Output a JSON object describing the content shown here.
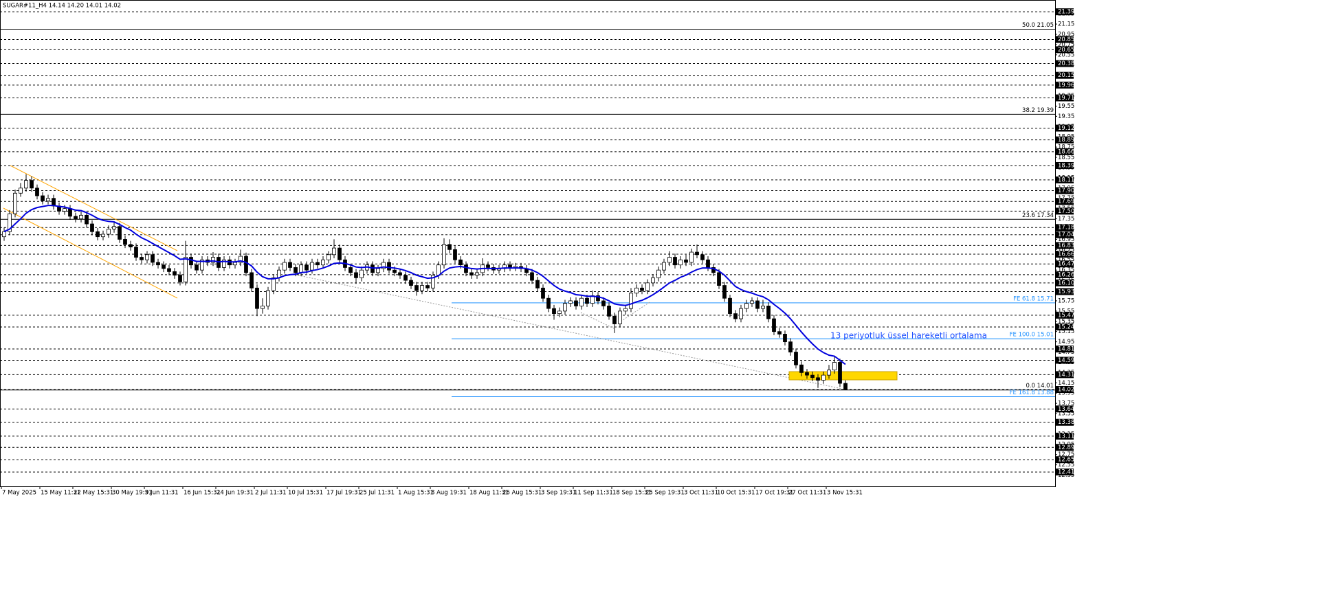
{
  "chart_data": {
    "type": "candlestick",
    "title": "SUGAR#11_H4  14.14 14.20 14.01 14.02",
    "annotation": "13 periyotluk üssel hareketli ortalama",
    "up_color": "#ffffff",
    "down_color": "#000000",
    "categories": [
      "7 May 2025",
      null,
      null,
      null,
      null,
      null,
      null,
      "15 May 11:31",
      null,
      null,
      null,
      null,
      null,
      "22 May 15:31",
      null,
      null,
      null,
      null,
      null,
      null,
      "30 May 19:31",
      null,
      null,
      null,
      null,
      null,
      "9 Jun 11:31",
      null,
      null,
      null,
      null,
      null,
      null,
      "16 Jun 15:31",
      null,
      null,
      null,
      null,
      null,
      "24 Jun 19:31",
      null,
      null,
      null,
      null,
      null,
      null,
      "2 Jul 11:31",
      null,
      null,
      null,
      null,
      null,
      "10 Jul 15:31",
      null,
      null,
      null,
      null,
      null,
      null,
      "17 Jul 19:31",
      null,
      null,
      null,
      null,
      null,
      "25 Jul 11:31",
      null,
      null,
      null,
      null,
      null,
      null,
      "1 Aug 15:31",
      null,
      null,
      null,
      null,
      null,
      "8 Aug 19:31",
      null,
      null,
      null,
      null,
      null,
      null,
      "18 Aug 11:31",
      null,
      null,
      null,
      null,
      null,
      "26 Aug 15:31",
      null,
      null,
      null,
      null,
      null,
      null,
      "3 Sep 19:31",
      null,
      null,
      null,
      null,
      null,
      "11 Sep 11:31",
      null,
      null,
      null,
      null,
      null,
      null,
      "18 Sep 15:31",
      null,
      null,
      null,
      null,
      null,
      "25 Sep 19:31",
      null,
      null,
      null,
      null,
      null,
      null,
      "3 Oct 11:31",
      null,
      null,
      null,
      null,
      null,
      "10 Oct 15:31",
      null,
      null,
      null,
      null,
      null,
      null,
      "17 Oct 19:31",
      null,
      null,
      null,
      null,
      null,
      "27 Oct 11:31",
      null,
      null,
      null,
      null,
      null,
      null,
      "3 Nov 15:31",
      null,
      null,
      null
    ],
    "open": [
      17.0,
      17.1,
      17.45,
      17.85,
      17.95,
      18.1,
      17.95,
      17.8,
      17.7,
      17.75,
      17.6,
      17.5,
      17.55,
      17.4,
      17.35,
      17.42,
      17.25,
      17.1,
      17.0,
      17.05,
      17.15,
      17.2,
      16.95,
      16.85,
      16.8,
      16.6,
      16.55,
      16.65,
      16.5,
      16.45,
      16.38,
      16.32,
      16.25,
      16.12,
      16.6,
      16.45,
      16.35,
      16.55,
      16.5,
      16.6,
      16.4,
      16.55,
      16.45,
      16.5,
      16.62,
      16.3,
      16.0,
      15.6,
      15.65,
      15.95,
      16.2,
      16.35,
      16.5,
      16.4,
      16.3,
      16.45,
      16.35,
      16.5,
      16.45,
      16.55,
      16.65,
      16.78,
      16.55,
      16.4,
      16.3,
      16.2,
      16.35,
      16.45,
      16.3,
      16.38,
      16.5,
      16.35,
      16.3,
      16.25,
      16.15,
      16.05,
      15.95,
      16.05,
      16.0,
      16.25,
      16.45,
      16.85,
      16.75,
      16.55,
      16.45,
      16.3,
      16.25,
      16.3,
      16.45,
      16.4,
      16.35,
      16.38,
      16.45,
      16.4,
      16.42,
      16.38,
      16.3,
      16.15,
      16.0,
      15.8,
      15.6,
      15.5,
      15.55,
      15.7,
      15.75,
      15.65,
      15.8,
      15.7,
      15.85,
      15.75,
      15.65,
      15.45,
      15.3,
      15.55,
      15.6,
      15.9,
      16.0,
      15.95,
      16.1,
      16.2,
      16.35,
      16.5,
      16.6,
      16.45,
      16.55,
      16.5,
      16.7,
      16.65,
      16.55,
      16.4,
      16.3,
      16.05,
      15.8,
      15.5,
      15.4,
      15.6,
      15.7,
      15.75,
      15.6,
      15.65,
      15.4,
      15.15,
      15.1,
      14.95,
      14.75,
      14.5,
      14.35,
      14.3,
      14.25,
      14.2,
      14.3,
      14.4,
      14.55,
      14.14
    ],
    "high": [
      17.18,
      17.52,
      17.92,
      18.05,
      18.22,
      18.18,
      18.02,
      17.87,
      17.82,
      17.82,
      17.67,
      17.62,
      17.62,
      17.47,
      17.49,
      17.49,
      17.32,
      17.17,
      17.12,
      17.22,
      17.3,
      17.27,
      17.02,
      16.92,
      16.87,
      16.67,
      16.72,
      16.72,
      16.57,
      16.52,
      16.45,
      16.39,
      16.32,
      16.92,
      16.67,
      16.52,
      16.62,
      16.62,
      16.7,
      16.67,
      16.62,
      16.62,
      16.57,
      16.75,
      16.69,
      16.37,
      16.07,
      15.8,
      16.02,
      16.27,
      16.42,
      16.57,
      16.57,
      16.47,
      16.52,
      16.52,
      16.57,
      16.57,
      16.62,
      16.72,
      16.95,
      16.85,
      16.62,
      16.47,
      16.37,
      16.42,
      16.52,
      16.52,
      16.45,
      16.57,
      16.57,
      16.42,
      16.37,
      16.32,
      16.22,
      16.12,
      16.12,
      16.12,
      16.32,
      16.52,
      16.97,
      16.95,
      16.82,
      16.62,
      16.52,
      16.37,
      16.37,
      16.58,
      16.52,
      16.47,
      16.45,
      16.52,
      16.52,
      16.49,
      16.49,
      16.45,
      16.37,
      16.22,
      16.07,
      15.87,
      15.67,
      15.62,
      15.77,
      15.82,
      15.82,
      15.87,
      15.87,
      15.95,
      15.92,
      15.82,
      15.72,
      15.52,
      15.62,
      15.67,
      16.0,
      16.07,
      16.07,
      16.17,
      16.27,
      16.42,
      16.57,
      16.72,
      16.67,
      16.62,
      16.65,
      16.77,
      16.85,
      16.72,
      16.62,
      16.47,
      16.37,
      16.12,
      15.87,
      15.57,
      15.67,
      15.77,
      15.82,
      15.82,
      15.77,
      15.72,
      15.47,
      15.22,
      15.17,
      15.02,
      14.82,
      14.57,
      14.42,
      14.37,
      14.32,
      14.37,
      14.5,
      14.68,
      14.62,
      14.2
    ],
    "low": [
      16.92,
      17.03,
      17.38,
      17.78,
      17.88,
      17.88,
      17.73,
      17.63,
      17.63,
      17.53,
      17.43,
      17.43,
      17.33,
      17.28,
      17.28,
      17.18,
      17.03,
      16.93,
      16.93,
      16.98,
      17.08,
      16.88,
      16.78,
      16.73,
      16.53,
      16.48,
      16.48,
      16.43,
      16.38,
      16.31,
      16.25,
      16.18,
      16.05,
      16.05,
      16.38,
      16.28,
      16.28,
      16.43,
      16.43,
      16.33,
      16.33,
      16.38,
      16.38,
      16.43,
      16.23,
      15.93,
      15.45,
      15.5,
      15.58,
      15.88,
      16.13,
      16.28,
      16.33,
      16.23,
      16.23,
      16.28,
      16.28,
      16.38,
      16.38,
      16.48,
      16.58,
      16.48,
      16.33,
      16.23,
      16.08,
      16.13,
      16.28,
      16.23,
      16.23,
      16.31,
      16.28,
      16.23,
      16.18,
      16.08,
      15.98,
      15.85,
      15.88,
      15.93,
      15.93,
      16.18,
      16.38,
      16.68,
      16.48,
      16.38,
      16.23,
      16.18,
      16.18,
      16.23,
      16.33,
      16.28,
      16.28,
      16.31,
      16.33,
      16.33,
      16.31,
      16.23,
      16.08,
      15.93,
      15.73,
      15.53,
      15.38,
      15.43,
      15.48,
      15.63,
      15.58,
      15.58,
      15.63,
      15.63,
      15.68,
      15.58,
      15.38,
      15.12,
      15.23,
      15.48,
      15.53,
      15.83,
      15.88,
      15.88,
      16.03,
      16.13,
      16.28,
      16.43,
      16.38,
      16.38,
      16.43,
      16.43,
      16.58,
      16.48,
      16.33,
      16.23,
      15.98,
      15.73,
      15.43,
      15.33,
      15.33,
      15.53,
      15.63,
      15.53,
      15.53,
      15.33,
      15.08,
      15.03,
      14.88,
      14.68,
      14.43,
      14.28,
      14.23,
      14.18,
      14.05,
      14.13,
      14.23,
      14.33,
      14.07,
      14.01
    ],
    "close": [
      17.1,
      17.45,
      17.85,
      17.95,
      18.1,
      17.95,
      17.8,
      17.7,
      17.75,
      17.6,
      17.5,
      17.55,
      17.4,
      17.35,
      17.42,
      17.25,
      17.1,
      17.0,
      17.05,
      17.15,
      17.2,
      16.95,
      16.85,
      16.8,
      16.6,
      16.55,
      16.65,
      16.5,
      16.45,
      16.38,
      16.32,
      16.25,
      16.12,
      16.6,
      16.45,
      16.35,
      16.55,
      16.5,
      16.6,
      16.4,
      16.55,
      16.45,
      16.5,
      16.62,
      16.3,
      16.0,
      15.6,
      15.65,
      15.95,
      16.2,
      16.35,
      16.5,
      16.4,
      16.3,
      16.45,
      16.35,
      16.5,
      16.45,
      16.55,
      16.65,
      16.78,
      16.55,
      16.4,
      16.3,
      16.2,
      16.35,
      16.45,
      16.3,
      16.38,
      16.5,
      16.35,
      16.3,
      16.25,
      16.15,
      16.05,
      15.95,
      16.05,
      16.0,
      16.25,
      16.45,
      16.85,
      16.75,
      16.55,
      16.45,
      16.3,
      16.25,
      16.3,
      16.45,
      16.4,
      16.35,
      16.38,
      16.45,
      16.4,
      16.42,
      16.38,
      16.3,
      16.15,
      16.0,
      15.8,
      15.6,
      15.5,
      15.55,
      15.7,
      15.75,
      15.65,
      15.8,
      15.7,
      15.85,
      15.75,
      15.65,
      15.45,
      15.3,
      15.55,
      15.6,
      15.9,
      16.0,
      15.95,
      16.1,
      16.2,
      16.35,
      16.5,
      16.6,
      16.45,
      16.55,
      16.5,
      16.7,
      16.65,
      16.55,
      16.4,
      16.3,
      16.05,
      15.8,
      15.5,
      15.4,
      15.6,
      15.7,
      15.75,
      15.6,
      15.65,
      15.4,
      15.15,
      15.1,
      14.95,
      14.75,
      14.5,
      14.35,
      14.3,
      14.25,
      14.2,
      14.3,
      14.4,
      14.55,
      14.14,
      14.02
    ],
    "ema": {
      "color": "#0000dd",
      "values": [
        17.1,
        17.15,
        17.25,
        17.35,
        17.46,
        17.53,
        17.57,
        17.59,
        17.61,
        17.61,
        17.59,
        17.58,
        17.55,
        17.52,
        17.51,
        17.47,
        17.42,
        17.36,
        17.32,
        17.3,
        17.29,
        17.24,
        17.18,
        17.13,
        17.05,
        16.98,
        16.93,
        16.87,
        16.81,
        16.75,
        16.69,
        16.63,
        16.56,
        16.57,
        16.55,
        16.52,
        16.52,
        16.52,
        16.53,
        16.51,
        16.52,
        16.51,
        16.51,
        16.53,
        16.5,
        16.43,
        16.31,
        16.22,
        16.18,
        16.18,
        16.2,
        16.24,
        16.26,
        16.27,
        16.3,
        16.31,
        16.34,
        16.36,
        16.39,
        16.43,
        16.48,
        16.49,
        16.48,
        16.45,
        16.41,
        16.4,
        16.41,
        16.39,
        16.39,
        16.41,
        16.4,
        16.39,
        16.37,
        16.34,
        16.3,
        16.25,
        16.22,
        16.19,
        16.2,
        16.24,
        16.33,
        16.39,
        16.41,
        16.42,
        16.4,
        16.38,
        16.37,
        16.38,
        16.38,
        16.38,
        16.38,
        16.39,
        16.39,
        16.39,
        16.39,
        16.38,
        16.35,
        16.3,
        16.23,
        16.14,
        16.05,
        15.98,
        15.94,
        15.91,
        15.87,
        15.86,
        15.84,
        15.84,
        15.83,
        15.8,
        15.75,
        15.69,
        15.67,
        15.66,
        15.69,
        15.73,
        15.76,
        15.81,
        15.87,
        15.94,
        16.02,
        16.1,
        16.15,
        16.21,
        16.25,
        16.31,
        16.36,
        16.39,
        16.39,
        16.38,
        16.33,
        16.25,
        16.14,
        16.03,
        15.97,
        15.93,
        15.9,
        15.86,
        15.83,
        15.77,
        15.68,
        15.6,
        15.51,
        15.4,
        15.27,
        15.14,
        15.02,
        14.91,
        14.81,
        14.74,
        14.69,
        14.67,
        14.59,
        14.51
      ]
    },
    "ylim": [
      12.13,
      21.62
    ],
    "yticks": [
      21.35,
      21.15,
      20.95,
      20.75,
      20.55,
      20.35,
      20.15,
      19.95,
      19.75,
      19.55,
      19.35,
      19.15,
      18.95,
      18.75,
      18.55,
      18.35,
      18.15,
      17.95,
      17.75,
      17.55,
      17.35,
      17.15,
      16.95,
      16.75,
      16.55,
      16.35,
      16.15,
      15.95,
      15.75,
      15.55,
      15.35,
      15.15,
      14.95,
      14.75,
      14.55,
      14.35,
      14.15,
      13.95,
      13.75,
      13.55,
      13.35,
      13.15,
      12.95,
      12.75,
      12.55,
      12.35
    ],
    "levels": [
      21.39,
      20.85,
      20.65,
      20.38,
      20.15,
      19.96,
      19.71,
      19.12,
      18.89,
      18.66,
      18.39,
      18.11,
      {
        "value": 17.9,
        "label": "17.90"
      },
      17.69,
      {
        "value": 17.5,
        "label": "17.50"
      },
      17.18,
      17.04,
      16.83,
      16.66,
      16.47,
      16.26,
      {
        "value": 16.1,
        "label": "16.10"
      },
      15.93,
      15.47,
      15.24,
      14.81,
      14.59,
      14.31,
      14.02,
      13.64,
      13.38,
      13.11,
      12.89,
      12.65,
      12.41
    ],
    "fibo": [
      {
        "value": 21.05,
        "label": "50.0 21.05"
      },
      {
        "value": 19.39,
        "label": "38.2 19.39"
      },
      {
        "value": 17.34,
        "label": "23.6 17.34"
      },
      {
        "value": 14.01,
        "label": "0.0 14.01"
      }
    ],
    "fe": [
      {
        "value": 15.71,
        "label": "FE 61.8 15.71"
      },
      {
        "value": 15.01,
        "label": "FE 100.0 15.01"
      },
      {
        "value": 13.88,
        "label": "FE 161.8 13.88"
      }
    ]
  }
}
